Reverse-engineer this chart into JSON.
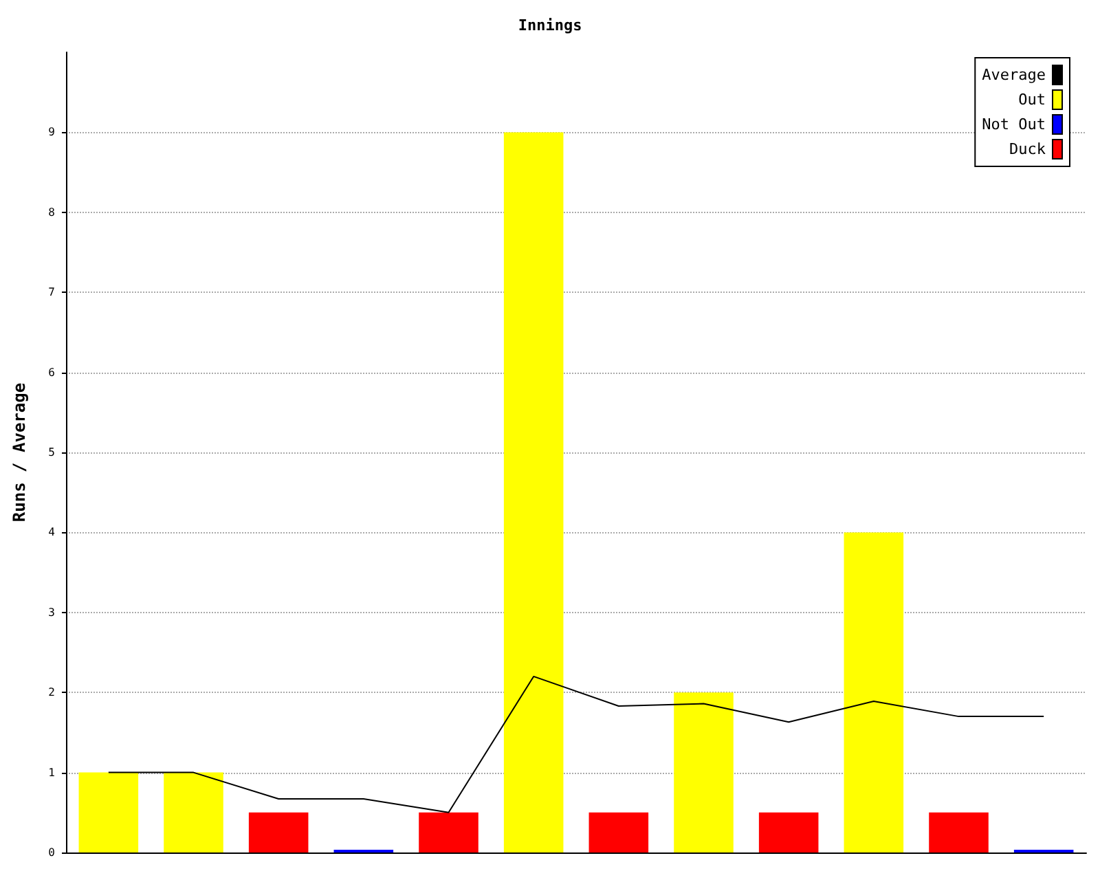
{
  "chart_data": {
    "type": "bar",
    "title": "Innings",
    "ylabel": "Runs / Average",
    "categories": [
      null,
      null,
      null,
      null,
      null,
      null,
      null,
      null,
      null,
      null,
      null,
      null
    ],
    "stacked": true,
    "ylim": [
      0,
      10
    ],
    "yticks": [
      0,
      1,
      2,
      3,
      4,
      5,
      6,
      7,
      8,
      9
    ],
    "grid": "y",
    "legend": "top right",
    "tick_labels": "y",
    "series": [
      {
        "name": "Average",
        "type": "line",
        "color": "#000000",
        "marker": "none",
        "values": [
          1,
          1,
          0.67,
          0.67,
          0.5,
          2.2,
          1.83,
          1.86,
          1.63,
          1.89,
          1.7,
          1.7
        ]
      },
      {
        "name": "Out",
        "color": "#ffff00",
        "values": [
          1,
          1,
          null,
          null,
          null,
          9,
          null,
          2,
          null,
          4,
          null,
          null
        ]
      },
      {
        "name": "Not Out",
        "color": "#0000ff",
        "values": [
          null,
          null,
          null,
          0,
          null,
          null,
          null,
          null,
          null,
          null,
          null,
          0
        ]
      },
      {
        "name": "Duck",
        "color": "#ff0000",
        "values": [
          null,
          null,
          0.5,
          null,
          0.5,
          null,
          0.5,
          null,
          0.5,
          null,
          0.5,
          null
        ]
      }
    ]
  }
}
